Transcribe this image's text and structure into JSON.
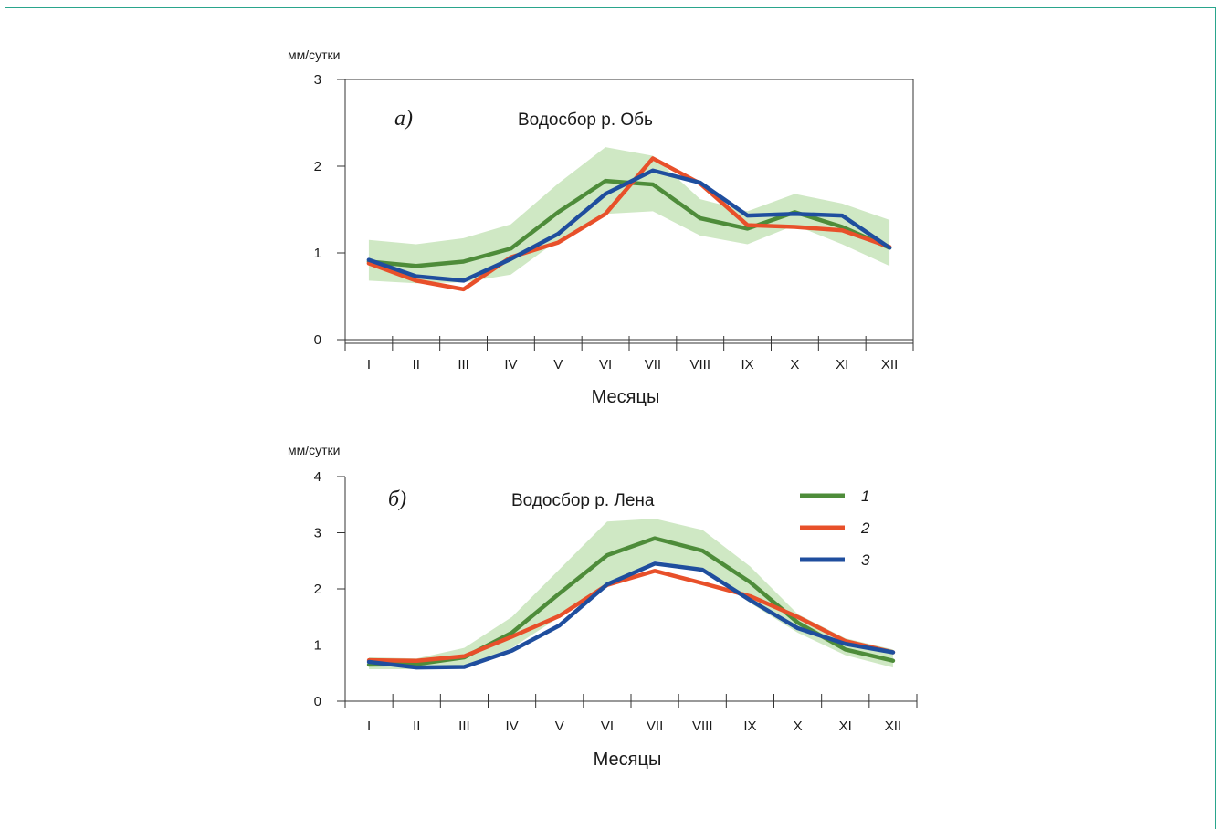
{
  "chart_data": [
    {
      "type": "line",
      "panel_label": "а)",
      "title": "Водосбор р. Обь",
      "ylabel": "мм/сутки",
      "xlabel": "Месяцы",
      "categories": [
        "I",
        "II",
        "III",
        "IV",
        "V",
        "VI",
        "VII",
        "VIII",
        "IX",
        "X",
        "XI",
        "XII"
      ],
      "ylim": [
        0,
        3
      ],
      "yticks": [
        0,
        1,
        2,
        3
      ],
      "band": {
        "lower": [
          0.68,
          0.65,
          0.66,
          0.75,
          1.15,
          1.45,
          1.48,
          1.2,
          1.1,
          1.32,
          1.1,
          0.85
        ],
        "upper": [
          1.15,
          1.1,
          1.17,
          1.33,
          1.8,
          2.22,
          2.12,
          1.62,
          1.48,
          1.68,
          1.57,
          1.38
        ],
        "color": "#cfe8c4"
      },
      "series": [
        {
          "name": "1",
          "color": "#4e8c3a",
          "values": [
            0.9,
            0.85,
            0.9,
            1.05,
            1.47,
            1.83,
            1.79,
            1.4,
            1.28,
            1.47,
            1.3,
            1.06
          ]
        },
        {
          "name": "2",
          "color": "#e8502a",
          "values": [
            0.88,
            0.68,
            0.58,
            0.95,
            1.12,
            1.45,
            2.09,
            1.8,
            1.32,
            1.3,
            1.26,
            1.07
          ]
        },
        {
          "name": "3",
          "color": "#1f4e9e",
          "values": [
            0.92,
            0.73,
            0.68,
            0.93,
            1.22,
            1.68,
            1.95,
            1.81,
            1.43,
            1.45,
            1.43,
            1.06
          ]
        }
      ]
    },
    {
      "type": "line",
      "panel_label": "б)",
      "title": "Водосбор р. Лена",
      "ylabel": "мм/сутки",
      "xlabel": "Месяцы",
      "categories": [
        "I",
        "II",
        "III",
        "IV",
        "V",
        "VI",
        "VII",
        "VIII",
        "IX",
        "X",
        "XI",
        "XII"
      ],
      "ylim": [
        0,
        4
      ],
      "yticks": [
        0,
        1,
        2,
        3,
        4
      ],
      "legend": {
        "position": "top-right",
        "entries": [
          "1",
          "2",
          "3"
        ]
      },
      "band": {
        "lower": [
          0.57,
          0.57,
          0.62,
          0.95,
          1.5,
          2.05,
          2.5,
          2.35,
          1.75,
          1.22,
          0.82,
          0.6
        ],
        "upper": [
          0.78,
          0.76,
          0.95,
          1.5,
          2.35,
          3.2,
          3.25,
          3.05,
          2.4,
          1.55,
          1.12,
          0.92
        ],
        "color": "#cfe8c4"
      },
      "series": [
        {
          "name": "1",
          "color": "#4e8c3a",
          "values": [
            0.65,
            0.66,
            0.78,
            1.22,
            1.92,
            2.6,
            2.9,
            2.68,
            2.12,
            1.4,
            0.92,
            0.72
          ]
        },
        {
          "name": "2",
          "color": "#e8502a",
          "values": [
            0.73,
            0.72,
            0.8,
            1.15,
            1.52,
            2.07,
            2.32,
            2.1,
            1.87,
            1.5,
            1.07,
            0.87
          ]
        },
        {
          "name": "3",
          "color": "#1f4e9e",
          "values": [
            0.7,
            0.6,
            0.61,
            0.9,
            1.35,
            2.08,
            2.45,
            2.34,
            1.8,
            1.3,
            1.02,
            0.87
          ]
        }
      ]
    }
  ]
}
